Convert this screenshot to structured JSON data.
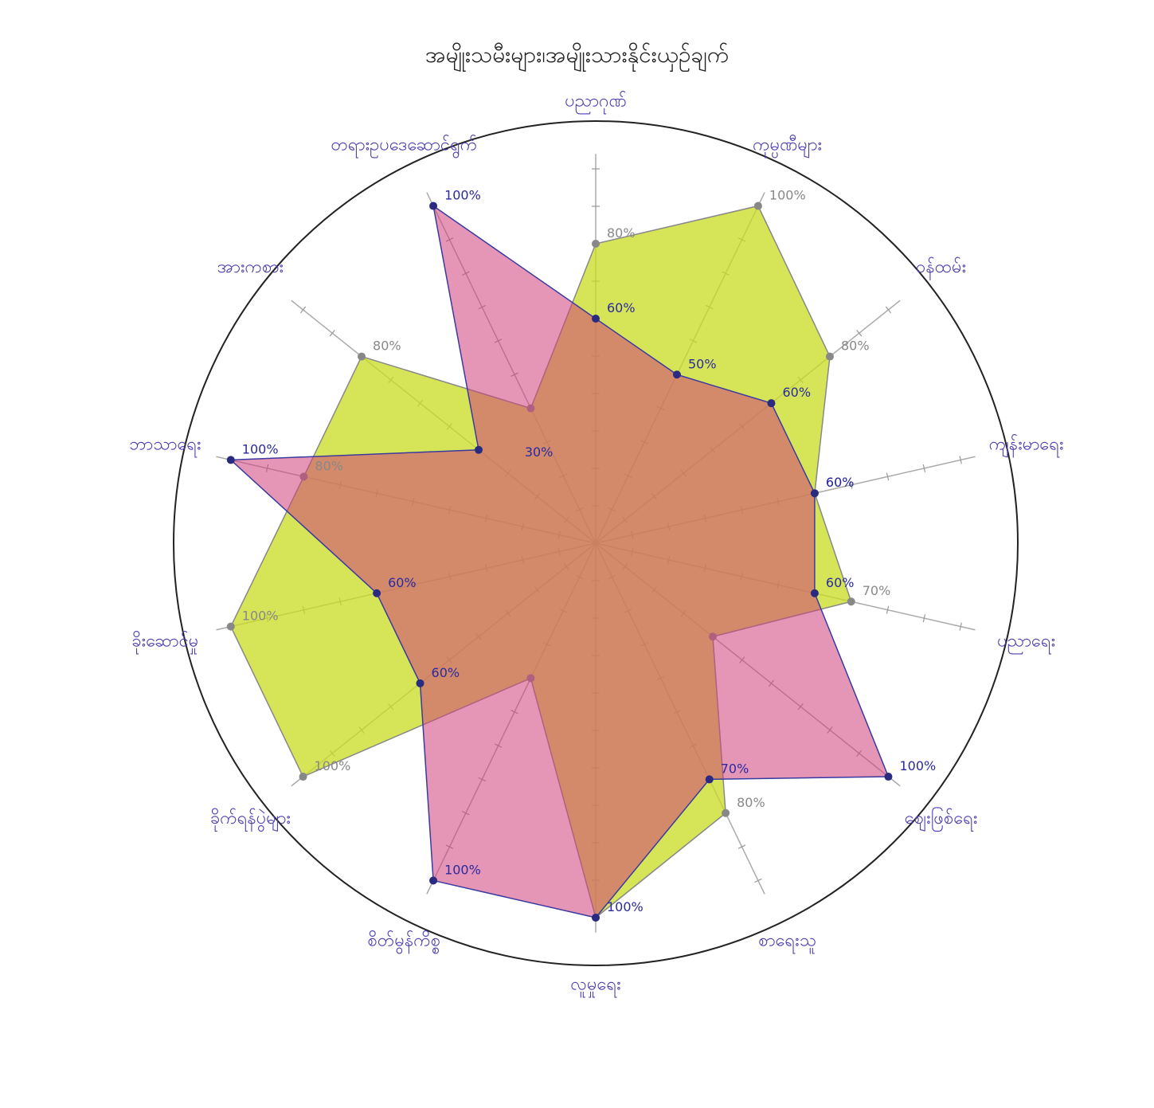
{
  "chart_data": {
    "type": "radar",
    "title": "အမျိုးသမီးများ၊အမျိုးသားနိုင်းယှဉ်ချက်",
    "categories": [
      "ပညာဂုဏ်",
      "ကုမ္ပဏီများ",
      "ဝန်ထမ်း",
      "ကျန်းမာရေး",
      "ပညာရေး",
      "ဈေးဖြစ်ရေး",
      "စာရေးသူ",
      "လူမှုရေး",
      "စိတ်မွန်ကိစ္စ",
      "ခိုက်ရန်ပွဲများ",
      "ခိုးဆောင်မှု",
      "ဘာသာရေး",
      "အားကစား",
      "တရားဥပဒေဆောင်ရွက်"
    ],
    "series": [
      {
        "color": "#c8dc20",
        "values": [
          80,
          100,
          80,
          60,
          70,
          null,
          80,
          100,
          null,
          100,
          100,
          80,
          80,
          null
        ]
      },
      {
        "color": "#d0407a",
        "values": [
          60,
          50,
          60,
          60,
          60,
          100,
          70,
          100,
          100,
          60,
          60,
          100,
          null,
          100
        ]
      }
    ],
    "point_labels": {
      "green": [
        "80%",
        "100%",
        "80%",
        "60%",
        "70%",
        "",
        "80%",
        "",
        "",
        "100%",
        "100%",
        "80%",
        "80%",
        ""
      ],
      "pink": [
        "60%",
        "50%",
        "60%",
        "60%",
        "60%",
        "100%",
        "70%",
        "100%",
        "100%",
        "60%",
        "60%",
        "100%",
        "",
        "100%"
      ],
      "inner": "30%"
    },
    "rmax": 100,
    "grid": true,
    "legend": "none"
  }
}
